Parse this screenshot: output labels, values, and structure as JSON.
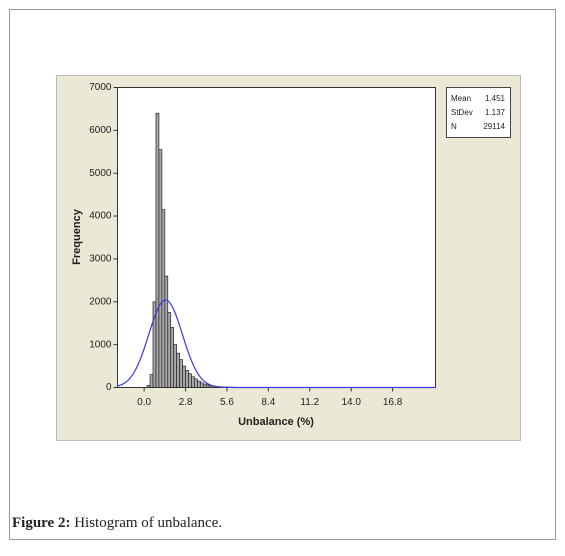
{
  "chart_data": {
    "type": "histogram",
    "x_label": "Unbalance (%)",
    "y_label": "Frequency",
    "bins": [
      0.2,
      0.4,
      0.6,
      0.8,
      1.0,
      1.2,
      1.4,
      1.6,
      1.8,
      2.0,
      2.2,
      2.4,
      2.6,
      2.8,
      3.0,
      3.2,
      3.4,
      3.6,
      3.8,
      4.0,
      4.2,
      4.4,
      4.6,
      4.8,
      5.0,
      5.2,
      5.4,
      5.6,
      5.8,
      6.0,
      6.2
    ],
    "counts": [
      50,
      300,
      2000,
      6400,
      5550,
      4150,
      2600,
      1750,
      1400,
      1000,
      800,
      650,
      500,
      400,
      320,
      250,
      200,
      150,
      110,
      80,
      60,
      45,
      35,
      25,
      20,
      15,
      10,
      10,
      8,
      5
    ],
    "color": "#a8a8a8",
    "curve_color": "#3a3adf",
    "stats": [
      {
        "name": "Mean",
        "value": 1.451
      },
      {
        "name": "StDev",
        "value": 1.137
      },
      {
        "name": "N",
        "value": 29114
      }
    ],
    "xlim": [
      -1.8,
      19.7
    ],
    "ylim": [
      0,
      7000
    ],
    "xticks": [
      {
        "value": 0,
        "label": "0.0"
      },
      2.8,
      5.6,
      8.4,
      11.2,
      {
        "value": 14,
        "label": "14.0"
      },
      16.8
    ],
    "yticks": [
      0,
      1000,
      2000,
      3000,
      4000,
      5000,
      6000,
      7000
    ]
  },
  "caption": {
    "label": "Figure 2:",
    "text": "Histogram of unbalance."
  }
}
